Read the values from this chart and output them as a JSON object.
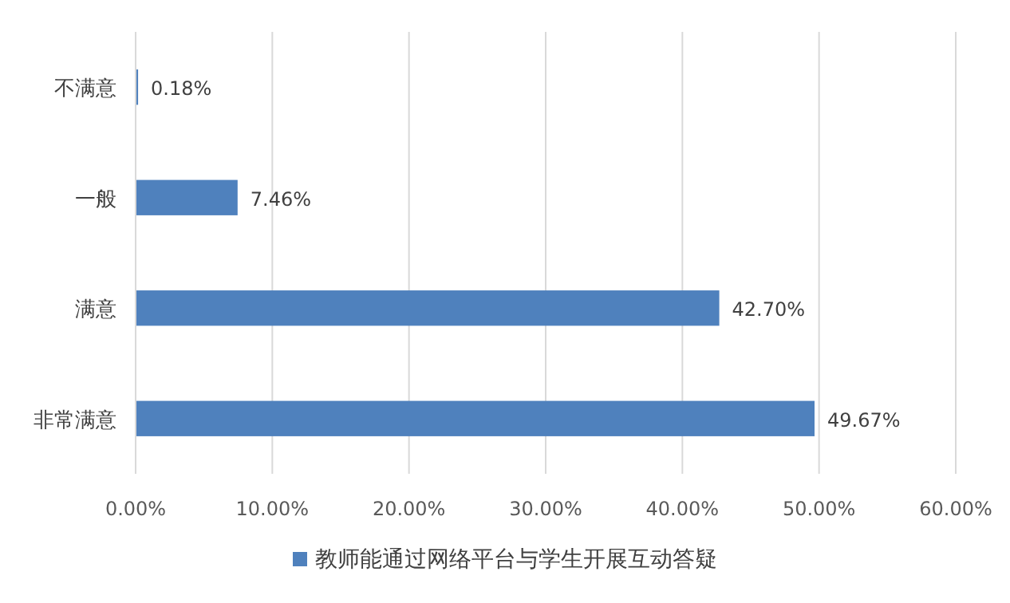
{
  "chart_data": {
    "type": "bar",
    "orientation": "horizontal",
    "categories": [
      "不满意",
      "一般",
      "满意",
      "非常满意"
    ],
    "series": [
      {
        "name": "教师能通过网络平台与学生开展互动答疑",
        "color": "#4f81bd",
        "values": [
          0.18,
          7.46,
          42.7,
          49.67
        ],
        "value_labels": [
          "0.18%",
          "7.46%",
          "42.70%",
          "49.67%"
        ]
      }
    ],
    "xlim": [
      0,
      60
    ],
    "xticks": [
      {
        "value": 0,
        "label": "0.00%"
      },
      {
        "value": 10,
        "label": "10.00%"
      },
      {
        "value": 20,
        "label": "20.00%"
      },
      {
        "value": 30,
        "label": "30.00%"
      },
      {
        "value": 40,
        "label": "40.00%"
      },
      {
        "value": 50,
        "label": "50.00%"
      },
      {
        "value": 60,
        "label": "60.00%"
      }
    ],
    "grid": "x",
    "legend": "bottom"
  }
}
